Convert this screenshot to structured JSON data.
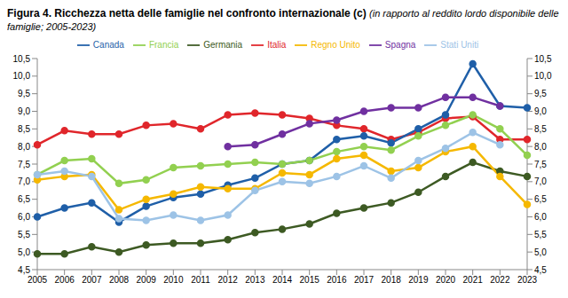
{
  "chart_data": {
    "type": "line",
    "title": "Figura 4. Ricchezza netta delle famiglie nel confronto internazionale (c)",
    "subtitle": "(in rapporto al reddito lordo disponibile delle famiglie; 2005-2023)",
    "categories": [
      "2005",
      "2006",
      "2007",
      "2008",
      "2009",
      "2010",
      "2011",
      "2012",
      "2013",
      "2014",
      "2015",
      "2016",
      "2017",
      "2018",
      "2019",
      "2020",
      "2021",
      "2022",
      "2023"
    ],
    "series": [
      {
        "name": "Italia",
        "color": "#e0262b",
        "values": [
          8.05,
          8.45,
          8.35,
          8.35,
          8.6,
          8.65,
          8.5,
          8.9,
          8.95,
          8.9,
          8.8,
          8.6,
          8.5,
          8.2,
          8.4,
          8.8,
          8.85,
          8.2,
          8.2
        ]
      },
      {
        "name": "Canada",
        "color": "#1f5fa8",
        "values": [
          6.0,
          6.25,
          6.4,
          5.85,
          6.3,
          6.55,
          6.65,
          6.9,
          7.1,
          7.5,
          7.6,
          8.2,
          8.3,
          8.1,
          8.5,
          8.9,
          10.35,
          9.15,
          9.1
        ]
      },
      {
        "name": "Francia",
        "color": "#92d050",
        "values": [
          7.2,
          7.6,
          7.65,
          6.95,
          7.05,
          7.4,
          7.45,
          7.5,
          7.55,
          7.5,
          7.6,
          7.85,
          8.0,
          7.9,
          8.3,
          8.6,
          8.9,
          8.5,
          7.75
        ]
      },
      {
        "name": "Germania",
        "color": "#3d5a23",
        "values": [
          4.95,
          4.95,
          5.15,
          5.0,
          5.2,
          5.25,
          5.25,
          5.35,
          5.55,
          5.65,
          5.8,
          6.1,
          6.25,
          6.4,
          6.7,
          7.15,
          7.55,
          7.3,
          7.15
        ]
      },
      {
        "name": "Regno Unito",
        "color": "#f5b800",
        "values": [
          7.05,
          7.15,
          7.2,
          6.2,
          6.5,
          6.65,
          6.85,
          6.8,
          6.8,
          7.25,
          7.2,
          7.65,
          7.75,
          7.3,
          7.4,
          7.85,
          8.0,
          7.15,
          6.35
        ]
      },
      {
        "name": "Spagna",
        "color": "#7030a0",
        "values": [
          null,
          null,
          null,
          null,
          null,
          null,
          null,
          8.0,
          8.05,
          8.35,
          8.65,
          8.75,
          9.0,
          9.1,
          9.1,
          9.4,
          9.4,
          9.15,
          null
        ]
      },
      {
        "name": "Stati Uniti",
        "color": "#9dc3e6",
        "values": [
          7.2,
          7.3,
          7.15,
          5.95,
          5.9,
          6.05,
          5.9,
          6.05,
          6.75,
          7.0,
          6.95,
          7.15,
          7.45,
          7.1,
          7.6,
          7.95,
          8.4,
          8.05,
          null
        ]
      }
    ],
    "ylim": [
      4.5,
      10.5
    ],
    "yticks": [
      {
        "value": 4.5,
        "label": "4,5"
      },
      {
        "value": 5,
        "label": "5,0"
      },
      {
        "value": 5.5,
        "label": "5,5"
      },
      {
        "value": 6,
        "label": "6,0"
      },
      {
        "value": 6.5,
        "label": "6,5"
      },
      {
        "value": 7,
        "label": "7,0"
      },
      {
        "value": 7.5,
        "label": "7,5"
      },
      {
        "value": 8,
        "label": "8,0"
      },
      {
        "value": 8.5,
        "label": "8,5"
      },
      {
        "value": 9,
        "label": "9,0"
      },
      {
        "value": 9.5,
        "label": "9,5"
      },
      {
        "value": 10,
        "label": "10,0"
      },
      {
        "value": 10.5,
        "label": "10,5"
      }
    ],
    "y2lim": [
      4.5,
      10.5
    ],
    "y2ticks": [
      {
        "value": 4.5,
        "label": "4,5"
      },
      {
        "value": 5,
        "label": "5,0"
      },
      {
        "value": 5.5,
        "label": "5,5"
      },
      {
        "value": 6,
        "label": "6,0"
      },
      {
        "value": 6.5,
        "label": "6,5"
      },
      {
        "value": 7,
        "label": "7,0"
      },
      {
        "value": 7.5,
        "label": "7,5"
      },
      {
        "value": 8,
        "label": "8,0"
      },
      {
        "value": 8.5,
        "label": "8,5"
      },
      {
        "value": 9,
        "label": "9,0"
      },
      {
        "value": 9.5,
        "label": "9,5"
      },
      {
        "value": 10,
        "label": "10,0"
      },
      {
        "value": 10.5,
        "label": "10,5"
      }
    ],
    "grid": false,
    "legend": "top",
    "marker": "circle",
    "line_style": "solid"
  }
}
